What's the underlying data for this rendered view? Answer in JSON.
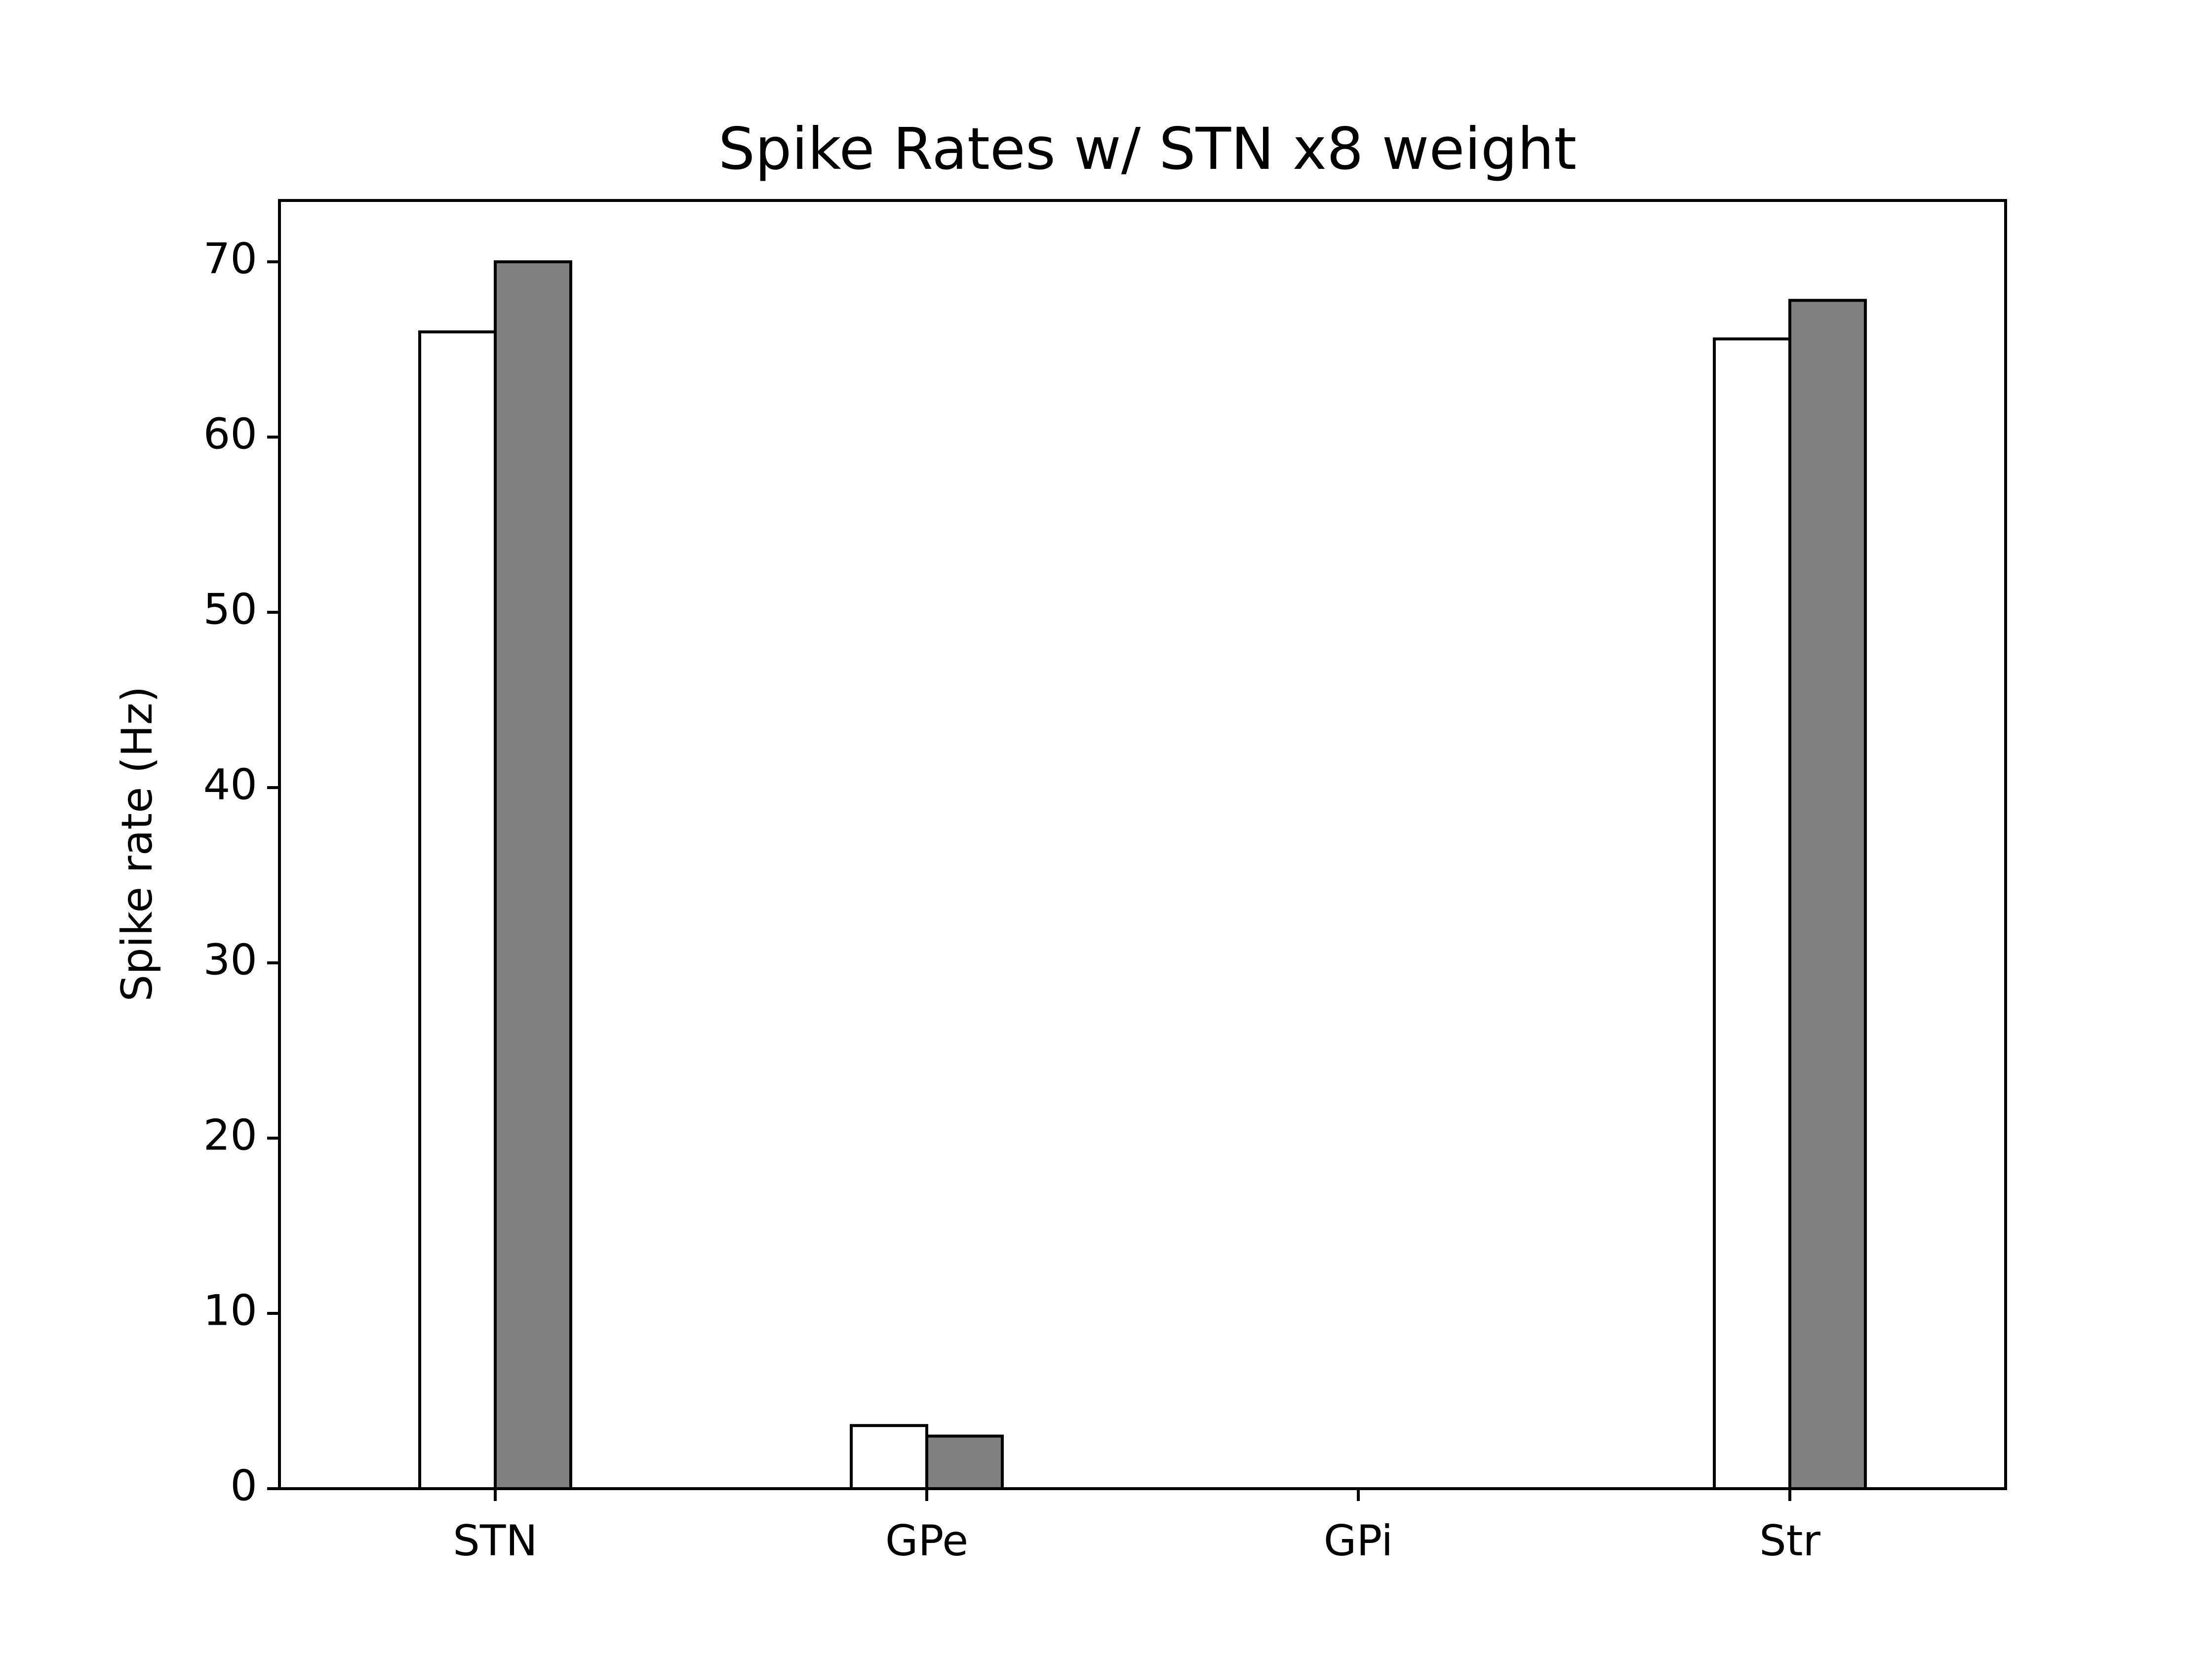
{
  "chart_data": {
    "type": "bar",
    "title": "Spike Rates w/ STN x8 weight",
    "xlabel": "",
    "ylabel": "Spike rate (Hz)",
    "categories": [
      "STN",
      "GPe",
      "GPi",
      "Str"
    ],
    "series": [
      {
        "values": [
          66.0,
          3.6,
          0.0,
          65.6
        ],
        "color": "#ffffff"
      },
      {
        "values": [
          70.0,
          3.0,
          0.0,
          67.8
        ],
        "color": "#808080"
      }
    ],
    "ylim": [
      0,
      73.5
    ],
    "yticks": [
      0,
      10,
      20,
      30,
      40,
      50,
      60,
      70
    ],
    "grid": false,
    "legend": "none",
    "edge_color": "#000000"
  }
}
